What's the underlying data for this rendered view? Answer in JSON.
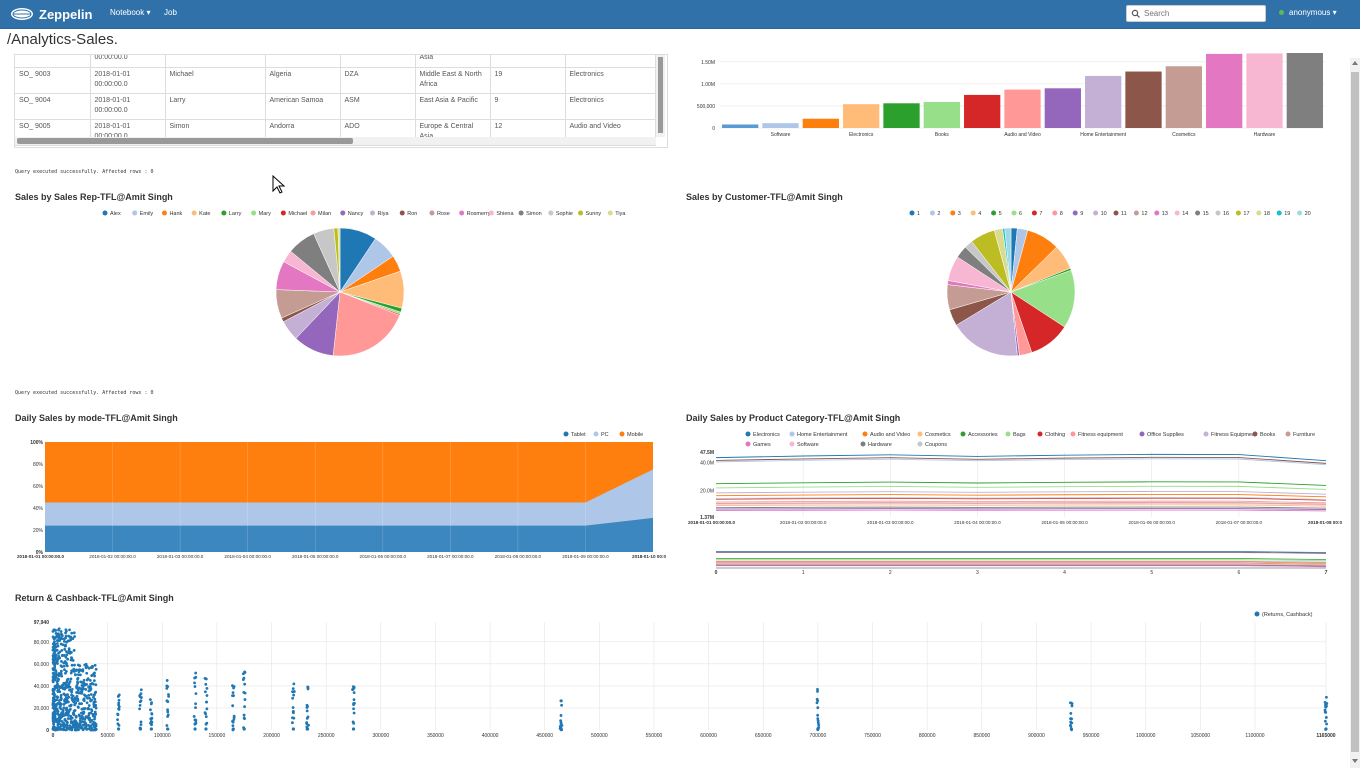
{
  "nav": {
    "brand": "Zeppelin",
    "notebook": "Notebook ▾",
    "job": "Job",
    "search_placeholder": "Search",
    "user": "anonymous ▾"
  },
  "note": {
    "title": "/Analytics-Sales."
  },
  "table": {
    "rows": [
      [
        "",
        "00:00:00.0",
        "",
        "",
        "",
        "Asia",
        "",
        ""
      ],
      [
        "SO_ 9003",
        "2018-01-01 00:00:00.0",
        "Michael",
        "Algeria",
        "DZA",
        "Middle East & North Africa",
        "19",
        "Electronics"
      ],
      [
        "SO_ 9004",
        "2018-01-01 00:00:00.0",
        "Larry",
        "American Samoa",
        "ASM",
        "East Asia & Pacific",
        "9",
        "Electronics"
      ],
      [
        "SO_ 9005",
        "2018-01-01 00:00:00.0",
        "Simon",
        "Andorra",
        "ADO",
        "Europe & Central Asia",
        "12",
        "Audio and Video"
      ]
    ]
  },
  "status": {
    "text1": "Query executed successfully. Affected rows : 0",
    "text2": "Query executed successfully. Affected rows : 0"
  },
  "charts": {
    "bar": {
      "type": "bar",
      "values": [
        80000,
        110000,
        210000,
        540000,
        560000,
        590000,
        750000,
        870000,
        900000,
        1180000,
        1280000,
        1400000,
        1680000,
        1690000,
        1700000
      ],
      "colors": [
        "#5b9bd5",
        "#aec7e8",
        "#ff7f0e",
        "#ffbb78",
        "#2ca02c",
        "#98df8a",
        "#d62728",
        "#ff9896",
        "#9467bd",
        "#c5b0d5",
        "#8c564b",
        "#c49c94",
        "#e377c2",
        "#f7b6d2",
        "#7f7f7f"
      ],
      "labels": [
        "",
        "Software",
        "",
        "Electronics",
        "",
        "Books",
        "",
        "Audio and Video",
        "",
        "Home Entertainment",
        "",
        "Cosmetics",
        "",
        "Hardware",
        ""
      ],
      "yticks": [
        "0",
        "500,000",
        "1.00M",
        "1.50M"
      ],
      "ymax": 1700000
    },
    "pie1": {
      "title": "Sales by Sales Rep-TFL@Amit Singh",
      "legend": [
        "Alex",
        "Emily",
        "Hank",
        "Kate",
        "Larry",
        "Mary",
        "Michael",
        "Milan",
        "Nancy",
        "Riya",
        "Ron",
        "Rose",
        "Rosmerry",
        "Shiena",
        "Simon",
        "Sophie",
        "Sunny",
        "Tiya"
      ],
      "colors": [
        "#1f77b4",
        "#aec7e8",
        "#ff7f0e",
        "#ffbb78",
        "#2ca02c",
        "#98df8a",
        "#d62728",
        "#ff9896",
        "#9467bd",
        "#c5b0d5",
        "#8c564b",
        "#c49c94",
        "#e377c2",
        "#f7b6d2",
        "#7f7f7f",
        "#c7c7c7",
        "#bcbd22",
        "#dbdb8d"
      ],
      "values": [
        9,
        6,
        4,
        9,
        1,
        0.5,
        0.3,
        20,
        10,
        5,
        1,
        7,
        7,
        3,
        7,
        5,
        1,
        0.5
      ]
    },
    "pie2": {
      "title": "Sales by Customer-TFL@Amit Singh",
      "legend": [
        "1",
        "2",
        "3",
        "4",
        "5",
        "6",
        "7",
        "8",
        "9",
        "10",
        "11",
        "12",
        "13",
        "14",
        "15",
        "16",
        "17",
        "18",
        "19",
        "20"
      ],
      "colors": [
        "#1f77b4",
        "#aec7e8",
        "#ff7f0e",
        "#ffbb78",
        "#2ca02c",
        "#98df8a",
        "#d62728",
        "#ff9896",
        "#9467bd",
        "#c5b0d5",
        "#8c564b",
        "#c49c94",
        "#e377c2",
        "#f7b6d2",
        "#7f7f7f",
        "#c7c7c7",
        "#bcbd22",
        "#dbdb8d",
        "#17becf",
        "#9edae5"
      ],
      "values": [
        1.5,
        2.5,
        8,
        6,
        0.5,
        14,
        10,
        3,
        0.5,
        17,
        4,
        6,
        1,
        6,
        3,
        2,
        6,
        2,
        0.5,
        1.5
      ]
    },
    "area": {
      "title": "Daily Sales by mode-TFL@Amit Singh",
      "legend": [
        "Tablet",
        "PC",
        "Mobile"
      ],
      "colors": [
        "#1f77b4",
        "#aec7e8",
        "#ff7f0e"
      ],
      "x": [
        "2018-01-01 00:00:00.0",
        "2018-01-02 00:00:00.0",
        "2018-01-03 00:00:00.0",
        "2018-01-04 00:00:00.0",
        "2018-01-05 00:00:00.0",
        "2018-01-06 00:00:00.0",
        "2018-01-07 00:00:00.0",
        "2018-01-08 00:00:00.0",
        "2018-01-09 00:00:00.0",
        "2018-01-10 00:0"
      ],
      "tablet": [
        24,
        24,
        24,
        24,
        24,
        24,
        24,
        24,
        24,
        31
      ],
      "pc": [
        21,
        21,
        21,
        21,
        21,
        21,
        21,
        21,
        21,
        44
      ],
      "yticks": [
        "0%",
        "20%",
        "40%",
        "60%",
        "80%",
        "100%"
      ]
    },
    "line": {
      "title": "Daily Sales by Product Category-TFL@Amit Singh",
      "legend": [
        "Electronics",
        "Home Entertainment",
        "Audio and Video",
        "Cosmetics",
        "Accessories",
        "Bags",
        "Clothing",
        "Fitness equipment",
        "Office Supplies",
        "Fitness Equipment",
        "Books",
        "Furniture",
        "Games",
        "Software",
        "Hardware",
        "Coupons"
      ],
      "colors": [
        "#1f77b4",
        "#aec7e8",
        "#ff7f0e",
        "#ffbb78",
        "#2ca02c",
        "#98df8a",
        "#d62728",
        "#ff9896",
        "#9467bd",
        "#c5b0d5",
        "#8c564b",
        "#c49c94",
        "#e377c2",
        "#f7b6d2",
        "#7f7f7f",
        "#c7c7c7"
      ],
      "x": [
        "2018-01-01 00:00:00.0",
        "2018-01-02 00:00:00.0",
        "2018-01-03 00:00:00.0",
        "2018-01-04 00:00:00.0",
        "2018-01-05 00:00:00.0",
        "2018-01-06 00:00:00.0",
        "2018-01-07 00:00:00.0",
        "2018-01-08 00:0"
      ],
      "series_levels": [
        43.5,
        40.5,
        16.5,
        9.5,
        25.0,
        22.0,
        14.0,
        12.0,
        7.0,
        18.5,
        41.5,
        11.0,
        6.0,
        10.5,
        8.0,
        14.5
      ],
      "yticks": [
        "1.37M",
        "20.0M",
        "40.0M",
        "47.5M"
      ],
      "ymin": 1.37,
      "ymax": 47.5,
      "nav_ticks": [
        "0",
        "1",
        "2",
        "3",
        "4",
        "5",
        "6",
        "7"
      ]
    },
    "scatter": {
      "title": "Return & Cashback-TFL@Amit Singh",
      "legend": [
        "(Returns, Cashback)"
      ],
      "xticks": [
        "0",
        "50000",
        "100000",
        "150000",
        "200000",
        "250000",
        "300000",
        "350000",
        "400000",
        "450000",
        "500000",
        "550000",
        "600000",
        "650000",
        "700000",
        "750000",
        "800000",
        "850000",
        "900000",
        "950000",
        "1000000",
        "1050000",
        "1100000",
        "1165000"
      ],
      "yticks": [
        "0",
        "20,000",
        "40,000",
        "60,000",
        "80,000",
        "97,940"
      ],
      "xmax": 1165000,
      "ymax": 97940,
      "column_x": [
        60000,
        80000,
        90000,
        105000,
        130000,
        140000,
        165000,
        175000,
        220000,
        233000,
        275000,
        465000,
        700000,
        932000,
        1165000
      ],
      "column_ymax": [
        35000,
        40000,
        30000,
        45000,
        55000,
        50000,
        48000,
        55000,
        52000,
        45000,
        48000,
        28000,
        37000,
        25000,
        30000
      ]
    }
  }
}
